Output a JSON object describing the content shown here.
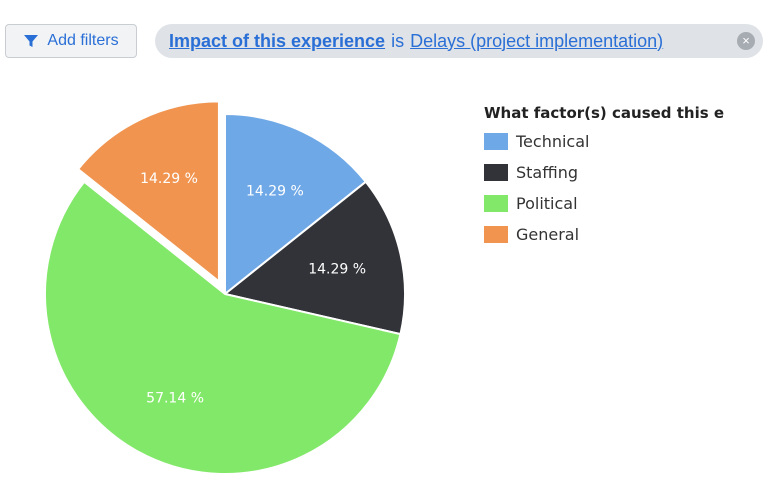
{
  "filters": {
    "add_label": "Add filters",
    "chip": {
      "field": "Impact of this experience",
      "operator": "is",
      "value": "Delays (project implementation)",
      "close_symbol": "×"
    }
  },
  "chart_data": {
    "type": "pie",
    "title": "What factor(s) caused this e",
    "legend_position": "right",
    "slices": [
      {
        "label": "Technical",
        "value": 14.29,
        "display": "14.29 %",
        "color": "#6fa8e6",
        "exploded": false
      },
      {
        "label": "Staffing",
        "value": 14.29,
        "display": "14.29 %",
        "color": "#323338",
        "exploded": false
      },
      {
        "label": "Political",
        "value": 57.14,
        "display": "57.14 %",
        "color": "#82e869",
        "exploded": false
      },
      {
        "label": "General",
        "value": 14.29,
        "display": "14.29 %",
        "color": "#f09450",
        "exploded": true
      }
    ]
  }
}
